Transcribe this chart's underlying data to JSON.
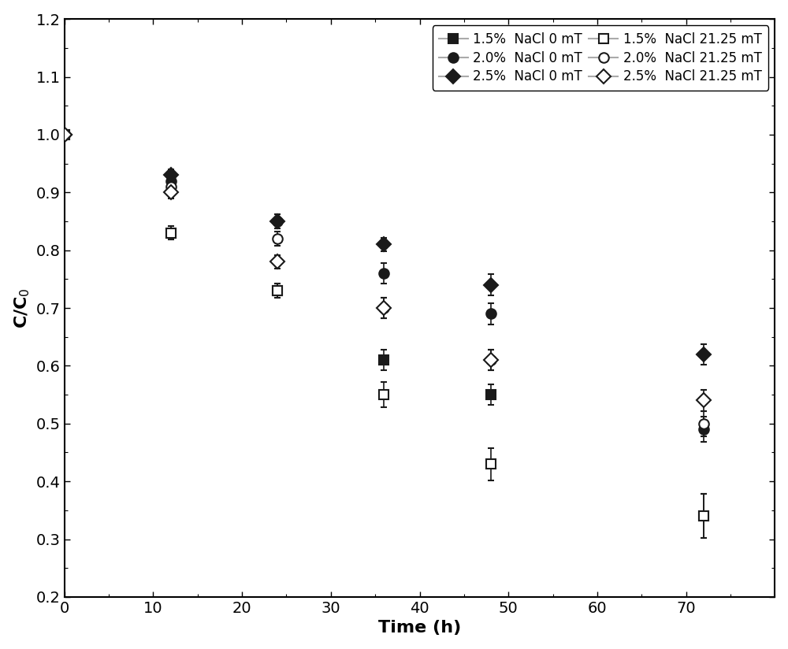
{
  "time": [
    0,
    12,
    24,
    36,
    48,
    72
  ],
  "series": [
    {
      "label": "1.5%  NaCl 0 mT",
      "y": [
        1.0,
        0.83,
        0.73,
        0.61,
        0.55,
        0.34
      ],
      "yerr": [
        0.005,
        0.012,
        0.012,
        0.018,
        0.018,
        0.038
      ],
      "marker": "s",
      "fillstyle": "full",
      "color": "#1a1a1a"
    },
    {
      "label": "2.0%  NaCl 0 mT",
      "y": [
        1.0,
        0.92,
        0.85,
        0.76,
        0.69,
        0.49
      ],
      "yerr": [
        0.005,
        0.01,
        0.012,
        0.018,
        0.018,
        0.022
      ],
      "marker": "o",
      "fillstyle": "full",
      "color": "#1a1a1a"
    },
    {
      "label": "2.5%  NaCl 0 mT",
      "y": [
        1.0,
        0.93,
        0.85,
        0.81,
        0.74,
        0.62
      ],
      "yerr": [
        0.005,
        0.01,
        0.012,
        0.012,
        0.018,
        0.018
      ],
      "marker": "D",
      "fillstyle": "full",
      "color": "#1a1a1a"
    },
    {
      "label": "1.5%  NaCl 21.25 mT",
      "y": [
        1.0,
        0.83,
        0.73,
        0.55,
        0.43,
        0.34
      ],
      "yerr": [
        0.005,
        0.012,
        0.012,
        0.022,
        0.028,
        0.038
      ],
      "marker": "s",
      "fillstyle": "none",
      "color": "#1a1a1a"
    },
    {
      "label": "2.0%  NaCl 21.25 mT",
      "y": [
        1.0,
        0.91,
        0.82,
        0.7,
        0.61,
        0.5
      ],
      "yerr": [
        0.005,
        0.01,
        0.012,
        0.018,
        0.018,
        0.022
      ],
      "marker": "o",
      "fillstyle": "none",
      "color": "#1a1a1a"
    },
    {
      "label": "2.5%  NaCl 21.25 mT",
      "y": [
        1.0,
        0.9,
        0.78,
        0.7,
        0.61,
        0.54
      ],
      "yerr": [
        0.005,
        0.01,
        0.012,
        0.018,
        0.018,
        0.018
      ],
      "marker": "D",
      "fillstyle": "none",
      "color": "#1a1a1a"
    }
  ],
  "xlabel": "Time (h)",
  "ylabel": "C/C$_0$",
  "xlim": [
    0,
    80
  ],
  "ylim": [
    0.2,
    1.2
  ],
  "xticks": [
    0,
    10,
    20,
    30,
    40,
    50,
    60,
    70
  ],
  "yticks": [
    0.2,
    0.3,
    0.4,
    0.5,
    0.6,
    0.7,
    0.8,
    0.9,
    1.0,
    1.1,
    1.2
  ],
  "line_color": "#aaaaaa",
  "marker_size": 9,
  "line_width": 1.5,
  "legend_fontsize": 12,
  "axis_fontsize": 16,
  "tick_fontsize": 14,
  "cap_size": 3,
  "elinewidth": 1.2,
  "capthick": 1.2
}
